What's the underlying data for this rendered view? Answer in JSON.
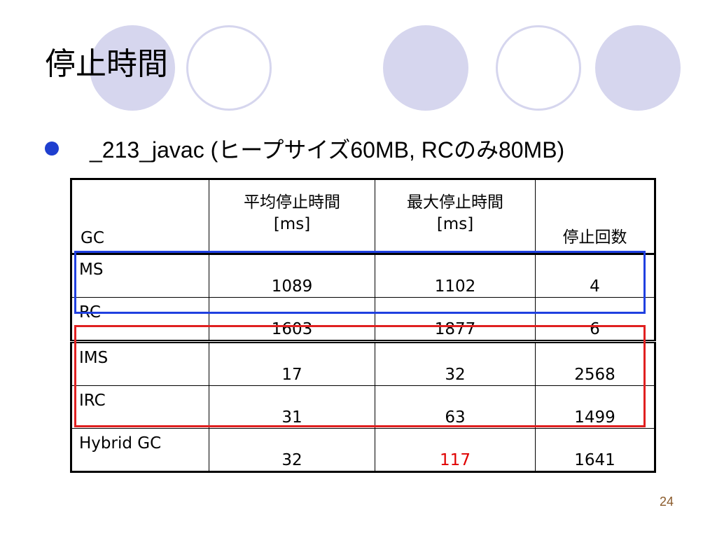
{
  "slide": {
    "title": "停止時間",
    "bullet_text": "_213_javac (ヒープサイズ60MB, RCのみ80MB)",
    "page_number": "24",
    "colors": {
      "decor_circle": "#d6d6ee",
      "bullet": "#1f3fcf",
      "highlight_text": "#e00000",
      "box_blue": "#2040e0",
      "box_red": "#e02020",
      "page_number": "#8a5a2a"
    }
  },
  "table": {
    "headers": {
      "gc": "GC",
      "avg_line1": "平均停止時間",
      "avg_line2": "[ms]",
      "max_line1": "最大停止時間",
      "max_line2": "[ms]",
      "count": "停止回数"
    },
    "rows": [
      {
        "name": "MS",
        "avg": "1089",
        "max": "1102",
        "count": "4"
      },
      {
        "name": "RC",
        "avg": "1603",
        "max": "1877",
        "count": "6"
      },
      {
        "name": "IMS",
        "avg": "17",
        "max": "32",
        "count": "2568"
      },
      {
        "name": "IRC",
        "avg": "31",
        "max": "63",
        "count": "1499"
      },
      {
        "name": "Hybrid GC",
        "avg": "32",
        "max": "117",
        "count": "1641"
      }
    ]
  }
}
